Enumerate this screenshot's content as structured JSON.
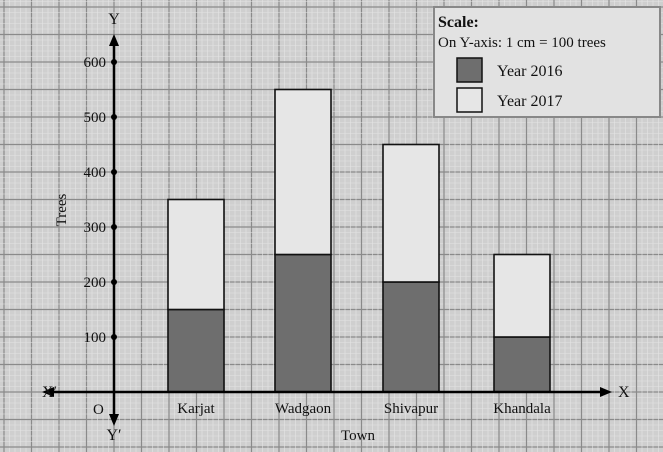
{
  "chart_data": {
    "type": "bar",
    "stacked": true,
    "categories": [
      "Karjat",
      "Wadgaon",
      "Shivapur",
      "Khandala"
    ],
    "series": [
      {
        "name": "Year 2016",
        "values": [
          150,
          250,
          200,
          100
        ],
        "color": "#6e6e6e"
      },
      {
        "name": "Year 2017",
        "values": [
          200,
          300,
          250,
          150
        ],
        "color": "#e6e6e6"
      }
    ],
    "xlabel": "Town",
    "ylabel": "Trees",
    "yticks": [
      100,
      200,
      300,
      400,
      500,
      600
    ],
    "ylim": [
      0,
      650
    ],
    "grid": true,
    "axis_labels": {
      "x_pos": "X",
      "x_neg": "X′",
      "y_pos": "Y",
      "y_neg": "Y′",
      "origin": "O"
    },
    "legend": {
      "position": "top-right",
      "title": "Scale:",
      "scale_text": "On Y-axis: 1 cm = 100 trees"
    }
  }
}
